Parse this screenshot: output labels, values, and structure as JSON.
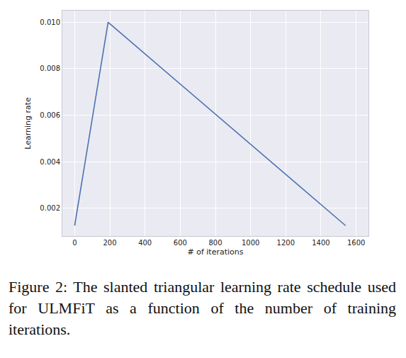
{
  "chart_data": {
    "type": "line",
    "x": [
      0,
      190,
      1540
    ],
    "values": [
      0.00125,
      0.01,
      0.00125
    ],
    "color": "#4c72b0",
    "x_label": "# of iterations",
    "y_label": "Learning rate",
    "xlim": [
      -70,
      1670
    ],
    "ylim": [
      0.0008,
      0.0105
    ],
    "xticks": [
      0,
      200,
      400,
      600,
      800,
      1000,
      1200,
      1400,
      1600
    ],
    "yticks": [
      0.002,
      0.004,
      0.006,
      0.008,
      {
        "value": 0.01,
        "label": "0.010"
      }
    ],
    "grid": true,
    "caption": "Figure 2: The slanted triangular learning rate schedule used for ULMFiT as a function of the number of training iterations."
  }
}
